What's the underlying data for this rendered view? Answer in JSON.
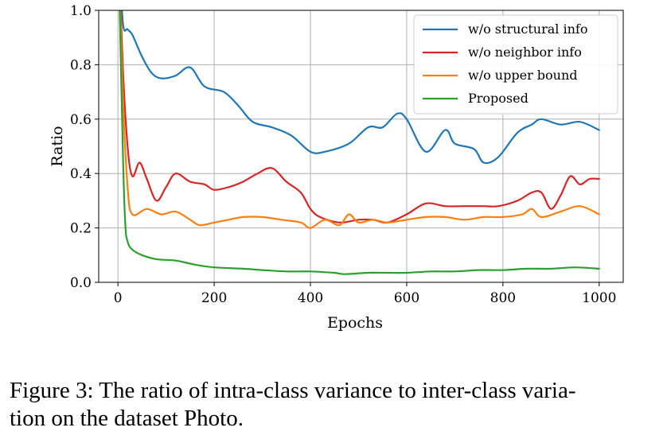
{
  "chart_data": {
    "type": "line",
    "title": "",
    "xlabel": "Epochs",
    "ylabel": "Ratio",
    "xlim": [
      -40,
      1050
    ],
    "ylim": [
      0.0,
      1.0
    ],
    "xticks": [
      0,
      200,
      400,
      600,
      800,
      1000
    ],
    "yticks": [
      0.0,
      0.2,
      0.4,
      0.6,
      0.8,
      1.0
    ],
    "xtick_labels": [
      "0",
      "200",
      "400",
      "600",
      "800",
      "1000"
    ],
    "ytick_labels": [
      "0.0",
      "0.2",
      "0.4",
      "0.6",
      "0.8",
      "1.0"
    ],
    "grid": true,
    "legend_position": "top-right",
    "series": [
      {
        "name": "w/o structural info",
        "color": "#1f77b4",
        "x": [
          0,
          10,
          20,
          30,
          50,
          70,
          90,
          120,
          150,
          180,
          220,
          250,
          280,
          320,
          360,
          400,
          430,
          480,
          520,
          550,
          580,
          600,
          640,
          680,
          700,
          740,
          760,
          790,
          830,
          860,
          880,
          920,
          960,
          1000
        ],
        "y": [
          1.3,
          0.96,
          0.93,
          0.91,
          0.83,
          0.77,
          0.75,
          0.76,
          0.79,
          0.72,
          0.7,
          0.65,
          0.59,
          0.57,
          0.54,
          0.48,
          0.48,
          0.51,
          0.57,
          0.57,
          0.62,
          0.6,
          0.48,
          0.56,
          0.51,
          0.49,
          0.44,
          0.46,
          0.55,
          0.58,
          0.6,
          0.58,
          0.59,
          0.56
        ]
      },
      {
        "name": "w/o neighbor info",
        "color": "#d62728",
        "x": [
          0,
          10,
          20,
          30,
          45,
          60,
          80,
          100,
          120,
          150,
          180,
          200,
          230,
          260,
          290,
          320,
          350,
          380,
          400,
          420,
          460,
          500,
          530,
          560,
          600,
          640,
          680,
          720,
          760,
          790,
          830,
          860,
          880,
          900,
          920,
          940,
          960,
          980,
          1000
        ],
        "y": [
          1.3,
          0.8,
          0.5,
          0.39,
          0.44,
          0.38,
          0.3,
          0.35,
          0.4,
          0.37,
          0.36,
          0.34,
          0.35,
          0.37,
          0.4,
          0.42,
          0.37,
          0.33,
          0.27,
          0.24,
          0.22,
          0.23,
          0.23,
          0.22,
          0.25,
          0.29,
          0.28,
          0.28,
          0.28,
          0.28,
          0.3,
          0.33,
          0.33,
          0.27,
          0.32,
          0.39,
          0.36,
          0.38,
          0.38
        ]
      },
      {
        "name": "w/o upper bound",
        "color": "#ff7f0e",
        "x": [
          0,
          10,
          20,
          30,
          60,
          90,
          120,
          150,
          170,
          200,
          230,
          260,
          300,
          340,
          380,
          400,
          430,
          460,
          480,
          500,
          530,
          560,
          600,
          640,
          680,
          720,
          760,
          800,
          840,
          860,
          880,
          920,
          960,
          1000
        ],
        "y": [
          1.3,
          0.7,
          0.35,
          0.25,
          0.27,
          0.25,
          0.26,
          0.23,
          0.21,
          0.22,
          0.23,
          0.24,
          0.24,
          0.23,
          0.22,
          0.2,
          0.23,
          0.21,
          0.25,
          0.22,
          0.23,
          0.22,
          0.23,
          0.24,
          0.24,
          0.23,
          0.24,
          0.24,
          0.25,
          0.27,
          0.24,
          0.26,
          0.28,
          0.25
        ]
      },
      {
        "name": "Proposed",
        "color": "#2ca02c",
        "x": [
          0,
          10,
          15,
          20,
          30,
          50,
          80,
          120,
          160,
          200,
          260,
          300,
          350,
          400,
          450,
          470,
          520,
          560,
          600,
          650,
          700,
          750,
          800,
          850,
          900,
          950,
          1000
        ],
        "y": [
          1.3,
          0.5,
          0.22,
          0.15,
          0.12,
          0.1,
          0.085,
          0.08,
          0.065,
          0.055,
          0.05,
          0.045,
          0.04,
          0.04,
          0.035,
          0.03,
          0.035,
          0.035,
          0.035,
          0.04,
          0.04,
          0.045,
          0.045,
          0.05,
          0.05,
          0.055,
          0.05
        ]
      }
    ]
  },
  "caption": {
    "line1": "Figure 3: The ratio of intra-class variance to inter-class varia-",
    "line2": "tion on the dataset Photo."
  }
}
